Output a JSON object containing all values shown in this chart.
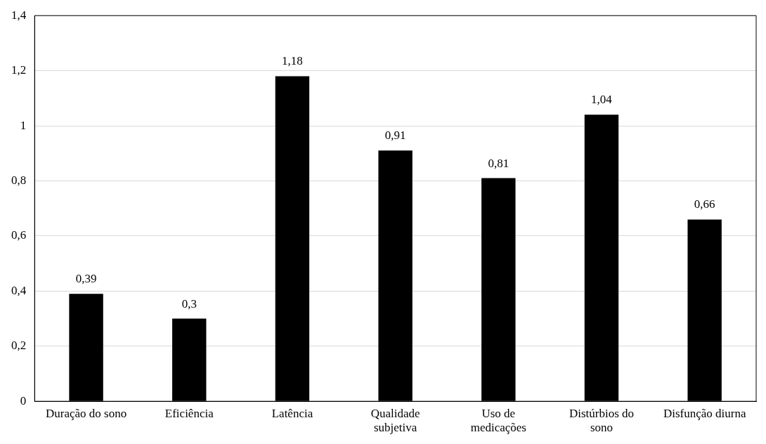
{
  "chart_data": {
    "type": "bar",
    "categories": [
      "Duração do sono",
      "Eficiência",
      "Latência",
      "Qualidade subjetiva",
      "Uso de medicações",
      "Distúrbios do sono",
      "Disfunção diurna"
    ],
    "values": [
      0.39,
      0.3,
      1.18,
      0.91,
      0.81,
      1.04,
      0.66
    ],
    "value_labels": [
      "0,39",
      "0,3",
      "1,18",
      "0,91",
      "0,81",
      "1,04",
      "0,66"
    ],
    "color": "#000000",
    "ylim": [
      0,
      1.4
    ],
    "yticks": [
      0,
      {
        "value": 0.2,
        "label": "0,2"
      },
      {
        "value": 0.4,
        "label": "0,4"
      },
      {
        "value": 0.6,
        "label": "0,6"
      },
      {
        "value": 0.8,
        "label": "0,8"
      },
      1,
      {
        "value": 1.2,
        "label": "1,2"
      },
      {
        "value": 1.4,
        "label": "1,4"
      }
    ],
    "grid": "y",
    "legend": false
  }
}
